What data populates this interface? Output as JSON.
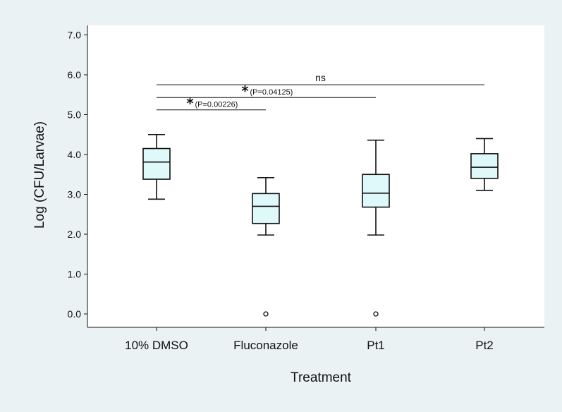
{
  "chart_data": {
    "type": "box",
    "xlabel": "Treatment",
    "ylabel": "Log (CFU/Larvae)",
    "ylim": [
      0,
      7.0
    ],
    "yticks": [
      "0.0",
      "1.0",
      "2.0",
      "3.0",
      "4.0",
      "5.0",
      "6.0",
      "7.0"
    ],
    "categories": [
      "10% DMSO",
      "Fluconazole",
      "Pt1",
      "Pt2"
    ],
    "boxes": [
      {
        "category": "10% DMSO",
        "whisker_low": 2.88,
        "q1": 3.38,
        "median": 3.81,
        "q3": 4.15,
        "whisker_high": 4.5,
        "outliers": []
      },
      {
        "category": "Fluconazole",
        "whisker_low": 1.98,
        "q1": 2.27,
        "median": 2.7,
        "q3": 3.02,
        "whisker_high": 3.42,
        "outliers": [
          0.0
        ]
      },
      {
        "category": "Pt1",
        "whisker_low": 1.98,
        "q1": 2.68,
        "median": 3.03,
        "q3": 3.5,
        "whisker_high": 4.36,
        "outliers": [
          0.0
        ]
      },
      {
        "category": "Pt2",
        "whisker_low": 3.1,
        "q1": 3.4,
        "median": 3.68,
        "q3": 4.02,
        "whisker_high": 4.4,
        "outliers": []
      }
    ],
    "significance": [
      {
        "from": "10% DMSO",
        "to": "Fluconazole",
        "y": 5.12,
        "mark": "*",
        "label": "(P=0.00226)"
      },
      {
        "from": "10% DMSO",
        "to": "Pt1",
        "y": 5.43,
        "mark": "*",
        "label": "(P=0.04125)"
      },
      {
        "from": "10% DMSO",
        "to": "Pt2",
        "y": 5.75,
        "mark": "",
        "label": "ns"
      }
    ],
    "colors": {
      "box_fill": "#dff9fb",
      "background": "#eaf2f3",
      "plot_area": "#ffffff",
      "line": "#111111"
    },
    "grid": false
  }
}
